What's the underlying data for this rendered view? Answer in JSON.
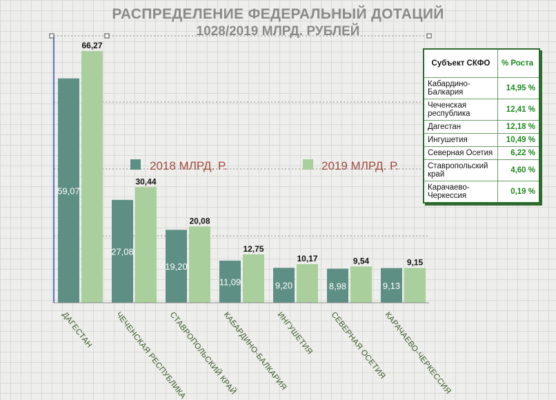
{
  "title": {
    "line1": "РАСПРЕДЕЛЕНИЕ ФЕДЕРАЛЬНЫЙ ДОТАЦИЙ",
    "line2": "1028/2019 МЛРД. РУБЛЕЙ"
  },
  "colors": {
    "series_2018": "#5e8f84",
    "series_2019": "#a8cf9c",
    "table_border": "#2d6a2d",
    "table_value": "#1c8a1c",
    "legend_text": "#a04a3c"
  },
  "chart_data": {
    "type": "bar",
    "categories": [
      "ДАГЕСТАН",
      "ЧЕЧЕНСКАЯ РЕСПУБЛИКА",
      "СТАВРОПОЛЬСКИЙ КРАЙ",
      "КАБАРДИНО-БАЛКАРИЯ",
      "ИНГУШЕТИЯ",
      "СЕВЕРНАЯ ОСЕТИЯ",
      "КАРАЧАЕВО-ЧЕРКЕССИЯ"
    ],
    "series": [
      {
        "name": "2018 МЛРД. Р.",
        "values": [
          59.07,
          27.08,
          19.2,
          11.09,
          9.2,
          8.98,
          9.13
        ],
        "labels": [
          "59,07",
          "27,08",
          "19,20",
          "11,09",
          "9,20",
          "8,98",
          "9,13"
        ]
      },
      {
        "name": "2019 МЛРД. Р.",
        "values": [
          66.27,
          30.44,
          20.08,
          12.75,
          10.17,
          9.54,
          9.15
        ],
        "labels": [
          "66,27",
          "30,44",
          "20,08",
          "12,75",
          "10,17",
          "9,54",
          "9,15"
        ]
      }
    ],
    "ylim": [
      0,
      70
    ],
    "grid": true,
    "legend": "center"
  },
  "table": {
    "headers": [
      "Субъект СКФО",
      "% Роста"
    ],
    "rows": [
      {
        "subject": "Кабардино-Балкария",
        "growth": "14,95 %"
      },
      {
        "subject": "Чеченская республика",
        "growth": "12,41 %"
      },
      {
        "subject": "Дагестан",
        "growth": "12,18 %"
      },
      {
        "subject": "Ингушетия",
        "growth": "10,49 %"
      },
      {
        "subject": "Северная Осетия",
        "growth": "6,22 %"
      },
      {
        "subject": "Ставропольский край",
        "growth": "4,60 %"
      },
      {
        "subject": "Карачаево-Черкессия",
        "growth": "0,19 %"
      }
    ]
  }
}
